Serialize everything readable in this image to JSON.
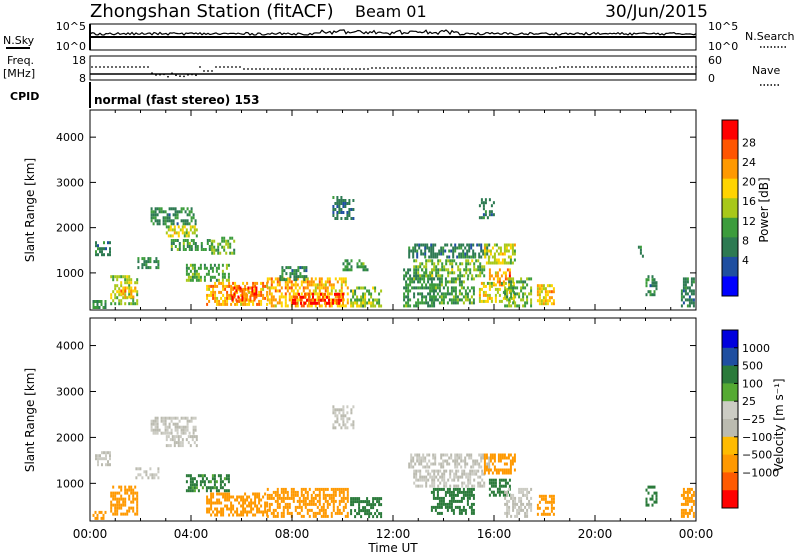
{
  "header": {
    "station": "Zhongshan Station (fitACF)",
    "beam": "Beam 01",
    "date": "30/Jun/2015"
  },
  "top_panels": {
    "nsky_label": "N.Sky",
    "nsky_ticks": [
      "10^5",
      "10^0"
    ],
    "nsearch_label": "N.Search",
    "nsearch_ticks": [
      "10^5",
      "10^0"
    ],
    "freq_label": "Freq.",
    "freq_unit": "[MHz]",
    "freq_ticks": [
      "18",
      "8"
    ],
    "nave_label": "Nave",
    "nave_ticks": [
      "60",
      "0"
    ],
    "cpid_label": "CPID",
    "cpid_text": "normal (fast stereo) 153"
  },
  "x_axis": {
    "label": "Time UT",
    "ticks": [
      "00:00",
      "04:00",
      "08:00",
      "12:00",
      "16:00",
      "20:00",
      "00:00"
    ]
  },
  "y_axis": {
    "label": "Slant Range [km]",
    "ticks": [
      "1000",
      "2000",
      "3000",
      "4000"
    ]
  },
  "colors": {
    "power": [
      "#0000ff",
      "#1f4fa0",
      "#2d7a52",
      "#3c9c3c",
      "#a8c81a",
      "#ffd400",
      "#ff9900",
      "#ff5500",
      "#ff0000"
    ],
    "velocity": [
      "#ff0000",
      "#ff5a00",
      "#ff9900",
      "#ffbb00",
      "#bbbbb0",
      "#ccccc4",
      "#55aa33",
      "#2a7a3a",
      "#1f4fa0",
      "#0000dd"
    ]
  },
  "chart_data": [
    {
      "type": "heatmap",
      "name": "power",
      "xlabel": "Time UT",
      "ylabel": "Slant Range [km]",
      "xlim": [
        0,
        24
      ],
      "ylim": [
        180,
        4600
      ],
      "colorbar": {
        "label": "Power [dB]",
        "range": [
          0,
          32
        ],
        "ticks": [
          "4",
          "8",
          "12",
          "16",
          "20",
          "24",
          "28"
        ]
      },
      "regions": [
        {
          "t0": 0.2,
          "t1": 0.8,
          "r0": 1420,
          "r1": 1700,
          "v": 9
        },
        {
          "t0": 0.1,
          "t1": 0.6,
          "r0": 240,
          "r1": 400,
          "v": 11
        },
        {
          "t0": 0.8,
          "t1": 1.9,
          "r0": 300,
          "r1": 950,
          "v": 15
        },
        {
          "t0": 1.2,
          "t1": 1.8,
          "r0": 450,
          "r1": 700,
          "v": 21
        },
        {
          "t0": 1.8,
          "t1": 2.7,
          "r0": 1150,
          "r1": 1350,
          "v": 10
        },
        {
          "t0": 2.4,
          "t1": 4.2,
          "r0": 2100,
          "r1": 2450,
          "v": 10
        },
        {
          "t0": 3.0,
          "t1": 4.2,
          "r0": 1800,
          "r1": 2050,
          "v": 17
        },
        {
          "t0": 3.2,
          "t1": 4.8,
          "r0": 1500,
          "r1": 1750,
          "v": 12
        },
        {
          "t0": 4.8,
          "t1": 5.7,
          "r0": 1450,
          "r1": 1800,
          "v": 14
        },
        {
          "t0": 3.8,
          "t1": 5.5,
          "r0": 850,
          "r1": 1200,
          "v": 13
        },
        {
          "t0": 4.6,
          "t1": 7.0,
          "r0": 300,
          "r1": 800,
          "v": 22
        },
        {
          "t0": 5.6,
          "t1": 6.6,
          "r0": 380,
          "r1": 700,
          "v": 27
        },
        {
          "t0": 7.0,
          "t1": 10.2,
          "r0": 300,
          "r1": 900,
          "v": 21
        },
        {
          "t0": 8.0,
          "t1": 10.0,
          "r0": 320,
          "r1": 560,
          "v": 28
        },
        {
          "t0": 7.5,
          "t1": 8.6,
          "r0": 850,
          "r1": 1150,
          "v": 10
        },
        {
          "t0": 9.6,
          "t1": 10.4,
          "r0": 2200,
          "r1": 2700,
          "v": 8
        },
        {
          "t0": 10.0,
          "t1": 11.0,
          "r0": 1050,
          "r1": 1300,
          "v": 12
        },
        {
          "t0": 10.3,
          "t1": 11.5,
          "r0": 250,
          "r1": 700,
          "v": 15
        },
        {
          "t0": 12.4,
          "t1": 13.6,
          "r0": 300,
          "r1": 1100,
          "v": 11
        },
        {
          "t0": 12.6,
          "t1": 15.8,
          "r0": 1350,
          "r1": 1650,
          "v": 9
        },
        {
          "t0": 12.8,
          "t1": 15.6,
          "r0": 950,
          "r1": 1300,
          "v": 14
        },
        {
          "t0": 13.5,
          "t1": 15.2,
          "r0": 350,
          "r1": 900,
          "v": 12
        },
        {
          "t0": 15.4,
          "t1": 16.0,
          "r0": 2250,
          "r1": 2650,
          "v": 9
        },
        {
          "t0": 15.6,
          "t1": 16.8,
          "r0": 1200,
          "r1": 1650,
          "v": 17
        },
        {
          "t0": 15.8,
          "t1": 16.6,
          "r0": 750,
          "r1": 1100,
          "v": 23
        },
        {
          "t0": 15.4,
          "t1": 16.8,
          "r0": 400,
          "r1": 800,
          "v": 18
        },
        {
          "t0": 16.4,
          "t1": 17.5,
          "r0": 300,
          "r1": 900,
          "v": 14
        },
        {
          "t0": 17.7,
          "t1": 18.4,
          "r0": 350,
          "r1": 750,
          "v": 20
        },
        {
          "t0": 21.7,
          "t1": 21.9,
          "r0": 1400,
          "r1": 1600,
          "v": 10
        },
        {
          "t0": 22.0,
          "t1": 22.4,
          "r0": 500,
          "r1": 950,
          "v": 10
        },
        {
          "t0": 23.4,
          "t1": 23.9,
          "r0": 300,
          "r1": 900,
          "v": 9
        }
      ]
    },
    {
      "type": "heatmap",
      "name": "velocity",
      "xlabel": "Time UT",
      "ylabel": "Slant Range [km]",
      "xlim": [
        0,
        24
      ],
      "ylim": [
        180,
        4600
      ],
      "colorbar": {
        "label": "Velocity [m s⁻¹]",
        "range": [
          -1250,
          1250
        ],
        "ticks": [
          "1000",
          "500",
          "100",
          "25",
          "−25",
          "−100",
          "−500",
          "−1000"
        ]
      },
      "regions": [
        {
          "t0": 0.2,
          "t1": 0.8,
          "r0": 1420,
          "r1": 1700,
          "v": 0
        },
        {
          "t0": 0.1,
          "t1": 0.6,
          "r0": 240,
          "r1": 400,
          "v": -200
        },
        {
          "t0": 0.8,
          "t1": 1.9,
          "r0": 300,
          "r1": 950,
          "v": -300
        },
        {
          "t0": 1.8,
          "t1": 2.7,
          "r0": 1150,
          "r1": 1350,
          "v": 0
        },
        {
          "t0": 2.4,
          "t1": 4.2,
          "r0": 2100,
          "r1": 2450,
          "v": 0
        },
        {
          "t0": 3.0,
          "t1": 4.2,
          "r0": 1800,
          "r1": 2050,
          "v": 0
        },
        {
          "t0": 3.8,
          "t1": 5.5,
          "r0": 850,
          "r1": 1200,
          "v": 120
        },
        {
          "t0": 4.6,
          "t1": 7.0,
          "r0": 300,
          "r1": 800,
          "v": -250
        },
        {
          "t0": 7.0,
          "t1": 10.2,
          "r0": 300,
          "r1": 900,
          "v": -200
        },
        {
          "t0": 9.6,
          "t1": 10.4,
          "r0": 2200,
          "r1": 2700,
          "v": 0
        },
        {
          "t0": 10.3,
          "t1": 11.5,
          "r0": 250,
          "r1": 700,
          "v": 150
        },
        {
          "t0": 12.6,
          "t1": 15.8,
          "r0": 1350,
          "r1": 1650,
          "v": 0
        },
        {
          "t0": 12.8,
          "t1": 15.6,
          "r0": 950,
          "r1": 1300,
          "v": 0
        },
        {
          "t0": 13.5,
          "t1": 15.2,
          "r0": 350,
          "r1": 900,
          "v": 200
        },
        {
          "t0": 15.6,
          "t1": 16.8,
          "r0": 1200,
          "r1": 1650,
          "v": -300
        },
        {
          "t0": 15.8,
          "t1": 16.6,
          "r0": 750,
          "r1": 1100,
          "v": 400
        },
        {
          "t0": 16.4,
          "t1": 17.5,
          "r0": 300,
          "r1": 900,
          "v": 0
        },
        {
          "t0": 17.7,
          "t1": 18.4,
          "r0": 350,
          "r1": 750,
          "v": -300
        },
        {
          "t0": 22.0,
          "t1": 22.4,
          "r0": 500,
          "r1": 950,
          "v": 150
        },
        {
          "t0": 23.4,
          "t1": 23.9,
          "r0": 300,
          "r1": 900,
          "v": -200
        }
      ]
    }
  ]
}
